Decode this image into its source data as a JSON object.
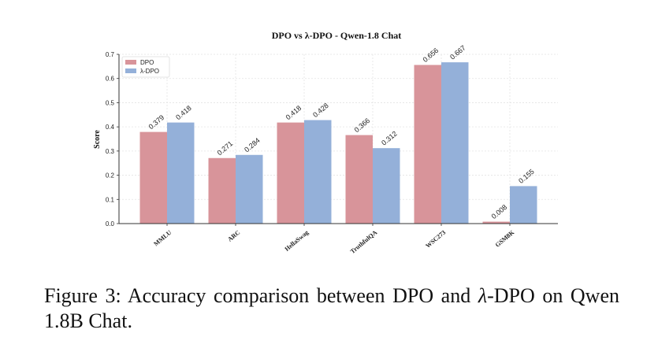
{
  "chart_data": {
    "type": "bar",
    "title": "DPO vs λ-DPO - Qwen-1.8 Chat",
    "xlabel": "",
    "ylabel": "Score",
    "categories": [
      "MMLU",
      "ARC",
      "HellaSwag",
      "TruthfulQA",
      "WSC273",
      "GSM8K"
    ],
    "series": [
      {
        "name": "DPO",
        "values": [
          0.379,
          0.271,
          0.418,
          0.366,
          0.656,
          0.008
        ],
        "color": "#d8949a"
      },
      {
        "name": "λ-DPO",
        "values": [
          0.418,
          0.284,
          0.428,
          0.312,
          0.667,
          0.155
        ],
        "color": "#94b0d9"
      }
    ],
    "value_labels": [
      [
        "0.379",
        "0.271",
        "0.418",
        "0.366",
        "0.656",
        "0.008"
      ],
      [
        "0.418",
        "0.284",
        "0.428",
        "0.312",
        "0.667",
        "0.155"
      ]
    ],
    "ylim": [
      0,
      0.7
    ],
    "yticks": [
      "0.0",
      "0.1",
      "0.2",
      "0.3",
      "0.4",
      "0.5",
      "0.6",
      "0.7"
    ],
    "grid": true,
    "legend_position": "top-left"
  },
  "caption": {
    "prefix": "Figure 3: Accuracy comparison between DPO and ",
    "lambda": "λ",
    "suffix": "-DPO on Qwen 1.8B Chat."
  }
}
